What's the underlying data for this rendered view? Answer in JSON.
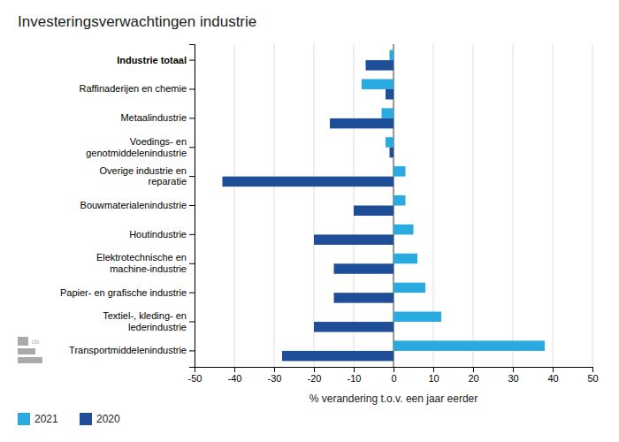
{
  "chart_data": {
    "type": "bar",
    "orientation": "horizontal",
    "title": "Investeringsverwachtingen industrie",
    "categories": [
      "Transportmiddelenindustrie",
      "Textiel-, kleding- en\nlederindustrie",
      "Papier- en grafische industrie",
      "Elektrotechnische en\nmachine-industrie",
      "Houtindustrie",
      "Bouwmaterialenindustrie",
      "Overige industrie en\nreparatie",
      "Voedings- en\ngenotmiddelenindustrie",
      "Metaalindustrie",
      "Raffinaderijen en chemie",
      "Industrie totaal"
    ],
    "series": [
      {
        "name": "2021",
        "color": "#29ABE2",
        "values": [
          38,
          12,
          8,
          6,
          5,
          3,
          3,
          -2,
          -3,
          -8,
          -1
        ]
      },
      {
        "name": "2020",
        "color": "#1F4E99",
        "values": [
          -28,
          -20,
          -15,
          -15,
          -20,
          -10,
          -43,
          -1,
          -16,
          -2,
          -7
        ]
      }
    ],
    "xlabel": "% verandering t.o.v. een jaar eerder",
    "xlim": [
      -50,
      50
    ],
    "xticks": [
      -50,
      -40,
      -30,
      -20,
      -10,
      0,
      10,
      20,
      30,
      40,
      50
    ],
    "grid": true,
    "legend": "lower left",
    "annotations": [
      {
        "text": "cb"
      }
    ]
  }
}
